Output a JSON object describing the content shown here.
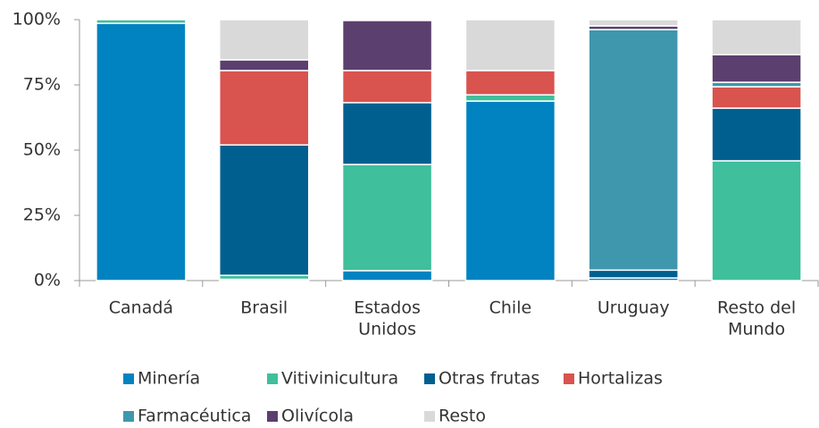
{
  "chart_data": {
    "type": "stacked_bar_100",
    "categories": [
      [
        "Canadá"
      ],
      [
        "Brasil"
      ],
      [
        "Estados",
        "Unidos"
      ],
      [
        "Chile"
      ],
      [
        "Uruguay"
      ],
      [
        "Resto del",
        "Mundo"
      ]
    ],
    "series": [
      {
        "name": "Minería",
        "color": "#0083c0",
        "values": [
          98.6,
          0.5,
          3.8,
          68.8,
          1,
          0
        ]
      },
      {
        "name": "Vitivinicultura",
        "color": "#3fbf9b",
        "values": [
          1.4,
          1.5,
          40.7,
          2.4,
          0,
          45.9
        ]
      },
      {
        "name": "Otras frutas",
        "color": "#005f8f",
        "values": [
          0,
          50,
          23.7,
          0,
          3,
          20.2
        ]
      },
      {
        "name": "Hortalizas",
        "color": "#d9534f",
        "values": [
          0,
          28.5,
          12.3,
          9.3,
          0,
          8.2
        ]
      },
      {
        "name": "Farmacéutica",
        "color": "#3f97ad",
        "values": [
          0,
          0,
          0,
          0,
          92.2,
          1.7
        ]
      },
      {
        "name": "Olivícola",
        "color": "#5b3f6e",
        "values": [
          0,
          4.1,
          19.2,
          0,
          1.4,
          10.6
        ]
      },
      {
        "name": "Resto",
        "color": "#d9d9d9",
        "values": [
          0,
          15.4,
          0.3,
          19.5,
          2.4,
          13.4
        ]
      }
    ],
    "ylim": [
      0,
      100
    ],
    "yticks": [
      {
        "value": 0,
        "label": "0%"
      },
      {
        "value": 25,
        "label": "25%"
      },
      {
        "value": 50,
        "label": "50%"
      },
      {
        "value": 75,
        "label": "75%"
      },
      {
        "value": 100,
        "label": "100%"
      }
    ],
    "legend": "bottom"
  }
}
